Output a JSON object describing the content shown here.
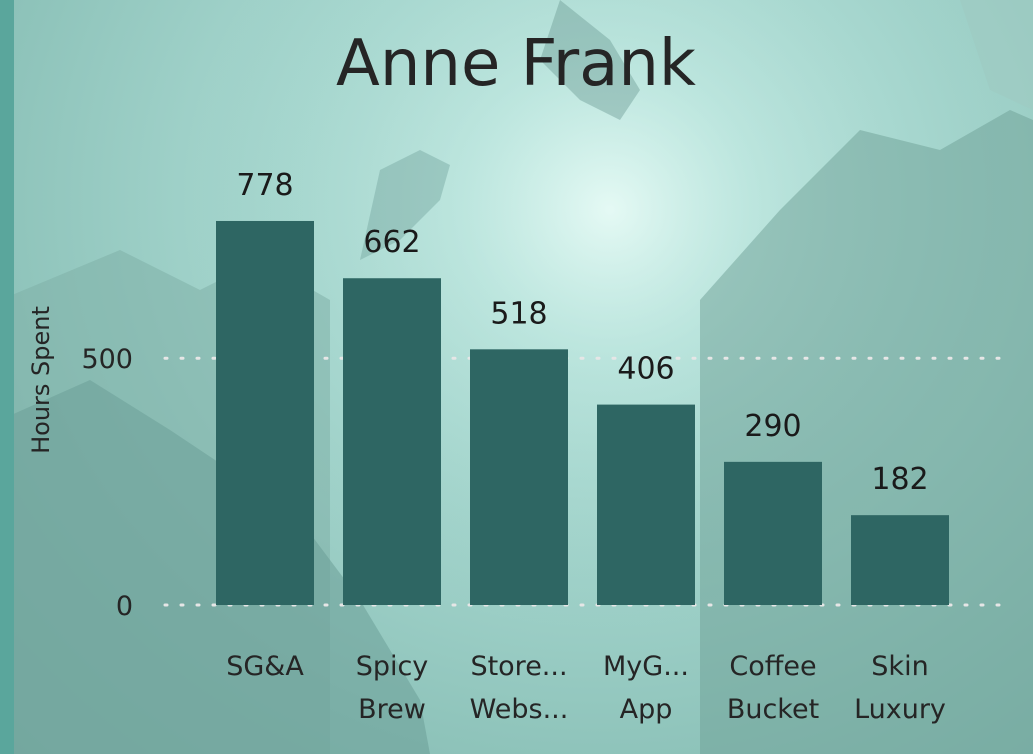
{
  "colors": {
    "bar": "#2e6663",
    "gridline": "#e6e6e6",
    "text": "#252525"
  },
  "chart_data": {
    "type": "bar",
    "title": "Anne Frank",
    "xlabel": "",
    "ylabel": "Hours Spent",
    "categories": [
      [
        "SG&A"
      ],
      [
        "Spicy",
        "Brew"
      ],
      [
        "Store...",
        "Webs..."
      ],
      [
        "MyG...",
        "App"
      ],
      [
        "Coffee",
        "Bucket"
      ],
      [
        "Skin",
        "Luxury"
      ]
    ],
    "values": [
      778,
      662,
      518,
      406,
      290,
      182
    ],
    "data_labels": [
      "778",
      "662",
      "518",
      "406",
      "290",
      "182"
    ],
    "yticks": [
      0,
      500
    ],
    "ytick_labels": [
      "0",
      "500"
    ],
    "ylim": [
      0,
      778
    ],
    "grid": true,
    "legend": "none"
  }
}
